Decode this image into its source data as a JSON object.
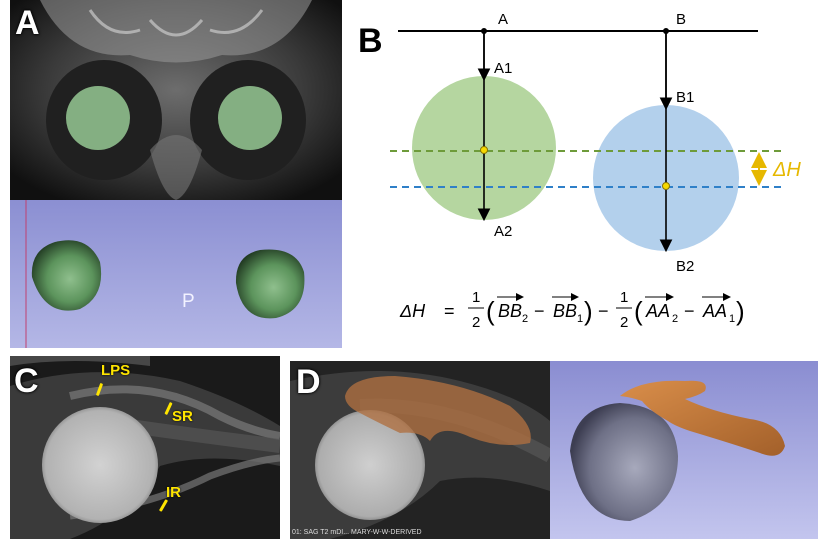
{
  "panels": {
    "a": {
      "label": "A",
      "model_mark": "P"
    },
    "b": {
      "label": "B",
      "point_a": "A",
      "point_b": "B",
      "point_a1": "A1",
      "point_a2": "A2",
      "point_b1": "B1",
      "point_b2": "B2",
      "delta_h": "ΔH",
      "formula_lhs": "ΔH",
      "formula_eq": "=",
      "half_num": "1",
      "half_den": "2",
      "minus": "−",
      "bb2": "BB",
      "bb2_sub": "2",
      "bb1": "BB",
      "bb1_sub": "1",
      "aa2": "AA",
      "aa2_sub": "2",
      "aa1": "AA",
      "aa1_sub": "1"
    },
    "c": {
      "label": "C",
      "muscles": {
        "lps": "LPS",
        "sr": "SR",
        "ir": "IR"
      }
    },
    "d": {
      "label": "D",
      "scan_caption": "01: SAG  T2 mDI... MARY-W-W-DERIVED"
    }
  },
  "colors": {
    "circle_green": "#b5d6a0",
    "circle_blue": "#b3d0ec",
    "dash_green": "#6e9b3a",
    "dash_blue": "#2f80c8",
    "delta_gold": "#e6b800",
    "muscle_yellow": "#ffe500",
    "render_bg": "#8c8fd0",
    "render_eye": "#5f9a60",
    "render_muscle": "#c2793b"
  }
}
